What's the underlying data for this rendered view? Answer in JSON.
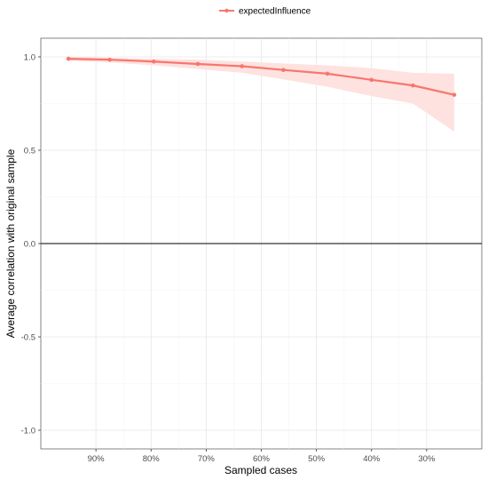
{
  "chart_data": {
    "type": "line",
    "xlabel": "Sampled cases",
    "ylabel": "Average correlation with original sample",
    "ylim": [
      -1.1,
      1.1
    ],
    "y_ticks": [
      -1.0,
      -0.5,
      0.0,
      0.5,
      1.0
    ],
    "y_tick_labels": [
      "-1.0",
      "-0.5",
      "0.0",
      "0.5",
      "1.0"
    ],
    "x_reversed": true,
    "xlim": [
      20,
      100
    ],
    "x_ticks": [
      90,
      80,
      70,
      60,
      50,
      40,
      30
    ],
    "x_tick_labels": [
      "90%",
      "80%",
      "70%",
      "60%",
      "50%",
      "40%",
      "30%"
    ],
    "grid": true,
    "reference_line": 0.0,
    "legend_position": "top",
    "series": [
      {
        "name": "expectedInfluence",
        "color": "#f8766d",
        "ribbon_color": "#fde2e0",
        "x": [
          95,
          87.5,
          79.5,
          71.5,
          63.5,
          56,
          48,
          40,
          32.5,
          25
        ],
        "values": [
          0.99,
          0.985,
          0.975,
          0.962,
          0.95,
          0.93,
          0.91,
          0.877,
          0.847,
          0.797
        ],
        "lower": [
          0.98,
          0.97,
          0.955,
          0.935,
          0.915,
          0.88,
          0.84,
          0.79,
          0.75,
          0.6
        ],
        "upper": [
          1.0,
          0.995,
          0.99,
          0.985,
          0.975,
          0.965,
          0.955,
          0.94,
          0.915,
          0.91
        ]
      }
    ]
  }
}
